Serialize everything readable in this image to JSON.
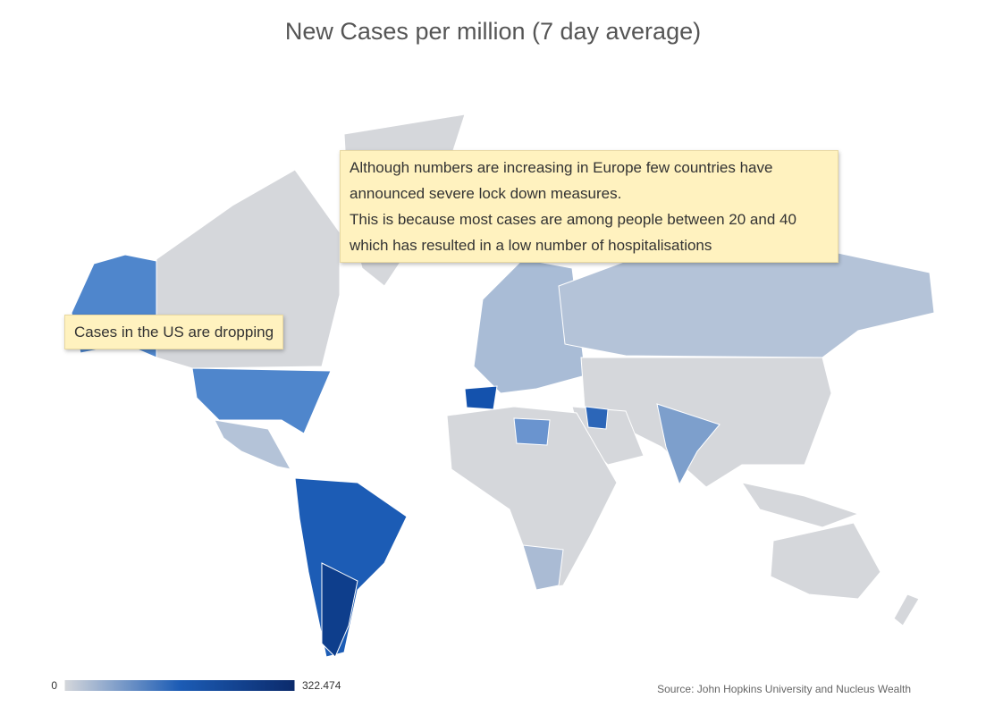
{
  "title": "New Cases per million (7 day average)",
  "annotations": [
    {
      "paragraphs": [
        "Although numbers are increasing in Europe few countries have announced severe lock down measures.",
        "This is because most cases are among people between 20 and 40 which has resulted in a low number of hospitalisations"
      ]
    },
    {
      "paragraphs": [
        "Cases in the US are dropping"
      ]
    }
  ],
  "legend": {
    "range": [
      0,
      322.474
    ],
    "ticks": [
      0,
      322.474
    ],
    "colors": [
      "#d5d7db",
      "#1c5cb5",
      "#0b2a6b"
    ]
  },
  "source": "Source: John Hopkins University and Nucleus Wealth"
}
